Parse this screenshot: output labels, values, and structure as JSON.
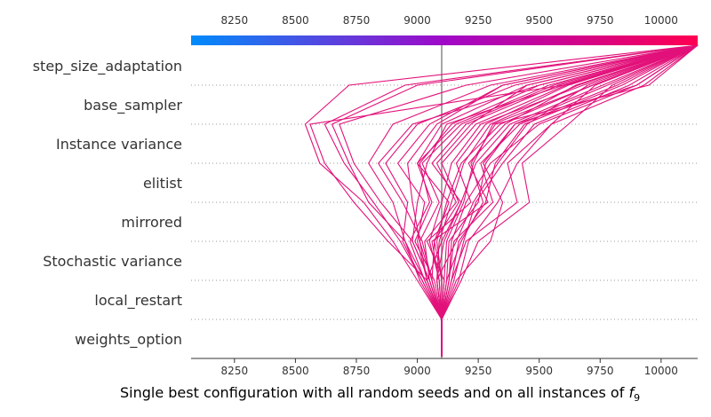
{
  "chart_data": {
    "type": "line",
    "chart_kind": "decision plot",
    "xlabel": "Single best configuration with all random seeds and on all instances of ",
    "xlabel_math": "f",
    "xlabel_sub": "9",
    "features": [
      "step_size_adaptation",
      "base_sampler",
      "Instance variance",
      "elitist",
      "mirrored",
      "Stochastic variance",
      "local_restart",
      "weights_option"
    ],
    "x_ticks": [
      8250,
      8500,
      8750,
      9000,
      9250,
      9500,
      9750,
      10000
    ],
    "x_tick_labels": [
      "8250",
      "8500",
      "8750",
      "9000",
      "9250",
      "9500",
      "9750",
      "10000"
    ],
    "xlim": [
      8072,
      10150
    ],
    "base_value": 9100,
    "colorbar": {
      "low": "#008bfb",
      "mid": "#a008c7",
      "high": "#ff0051",
      "range": [
        8072,
        10150
      ]
    },
    "line_color": "#e2117a",
    "grid": "dotted horizontal separators",
    "series": [
      {
        "values": [
          10150,
          8950,
          8620,
          8700,
          8820,
          8930,
          9020,
          9100
        ]
      },
      {
        "values": [
          10150,
          8720,
          8540,
          8600,
          8780,
          8900,
          9000,
          9100
        ]
      },
      {
        "values": [
          10150,
          9600,
          8560,
          8620,
          8740,
          8880,
          9040,
          9100
        ]
      },
      {
        "values": [
          10150,
          9200,
          8680,
          8740,
          8850,
          8980,
          9050,
          9100
        ]
      },
      {
        "values": [
          10150,
          9000,
          8650,
          8720,
          8800,
          8950,
          9030,
          9100
        ]
      },
      {
        "values": [
          10150,
          9800,
          9620,
          9430,
          9460,
          9250,
          9180,
          9100
        ]
      },
      {
        "values": [
          10150,
          9730,
          9550,
          9370,
          9410,
          9200,
          9140,
          9100
        ]
      },
      {
        "values": [
          10150,
          9900,
          9400,
          9270,
          9350,
          9300,
          9160,
          9100
        ]
      },
      {
        "values": [
          10150,
          9950,
          9320,
          9220,
          9270,
          9180,
          9120,
          9100
        ]
      },
      {
        "values": [
          10150,
          9580,
          9200,
          9060,
          9180,
          9100,
          9040,
          9100
        ]
      },
      {
        "values": [
          10150,
          9450,
          9100,
          9000,
          9130,
          9070,
          9060,
          9100
        ]
      },
      {
        "values": [
          10150,
          9700,
          9450,
          9330,
          9230,
          9160,
          9080,
          9100
        ]
      },
      {
        "values": [
          10150,
          9500,
          8980,
          8840,
          8940,
          9020,
          9060,
          9100
        ]
      },
      {
        "values": [
          10150,
          9300,
          8900,
          8800,
          8900,
          8950,
          9010,
          9100
        ]
      },
      {
        "values": [
          10150,
          9650,
          9360,
          9210,
          9290,
          9060,
          9090,
          9100
        ]
      },
      {
        "values": [
          10150,
          9900,
          9500,
          9300,
          9200,
          9140,
          9130,
          9100
        ]
      },
      {
        "values": [
          10150,
          9540,
          9160,
          9000,
          9060,
          8990,
          9070,
          9100
        ]
      },
      {
        "values": [
          10150,
          9620,
          9280,
          9160,
          9220,
          9040,
          9110,
          9100
        ]
      },
      {
        "values": [
          10150,
          9820,
          9420,
          9260,
          9310,
          9150,
          9130,
          9100
        ]
      },
      {
        "values": [
          10150,
          9350,
          9050,
          8920,
          9030,
          9000,
          9040,
          9100
        ]
      },
      {
        "values": [
          10150,
          9760,
          9380,
          9240,
          9180,
          9110,
          9080,
          9100
        ]
      },
      {
        "values": [
          10150,
          9680,
          9260,
          9140,
          9100,
          9050,
          9090,
          9100
        ]
      },
      {
        "values": [
          10150,
          9450,
          9220,
          9080,
          9160,
          9030,
          9050,
          9100
        ]
      },
      {
        "values": [
          10150,
          9870,
          9480,
          9350,
          9240,
          9190,
          9150,
          9100
        ]
      },
      {
        "values": [
          10150,
          9600,
          9120,
          9040,
          9000,
          8980,
          9050,
          9100
        ]
      },
      {
        "values": [
          10150,
          9720,
          9340,
          9180,
          9120,
          9080,
          9100,
          9100
        ]
      },
      {
        "values": [
          10150,
          9400,
          9000,
          8870,
          8960,
          8940,
          9020,
          9100
        ]
      },
      {
        "values": [
          10150,
          9560,
          9180,
          9020,
          9090,
          9010,
          9060,
          9100
        ]
      },
      {
        "values": [
          10150,
          9930,
          9550,
          9410,
          9330,
          9210,
          9170,
          9100
        ]
      },
      {
        "values": [
          10150,
          9780,
          9400,
          9280,
          9250,
          9130,
          9120,
          9100
        ]
      },
      {
        "values": [
          10150,
          9660,
          9300,
          9190,
          9140,
          9090,
          9080,
          9100
        ]
      },
      {
        "values": [
          10150,
          9500,
          9140,
          9010,
          9050,
          8970,
          9030,
          9100
        ]
      },
      {
        "values": [
          10150,
          9840,
          9440,
          9320,
          9280,
          9170,
          9140,
          9100
        ]
      },
      {
        "values": [
          10150,
          9610,
          9240,
          9100,
          9170,
          9070,
          9100,
          9100
        ]
      },
      {
        "values": [
          10150,
          9350,
          9080,
          8960,
          8980,
          9010,
          9040,
          9100
        ]
      },
      {
        "values": [
          10150,
          9720,
          9310,
          9230,
          9190,
          9120,
          9110,
          9100
        ]
      }
    ]
  }
}
